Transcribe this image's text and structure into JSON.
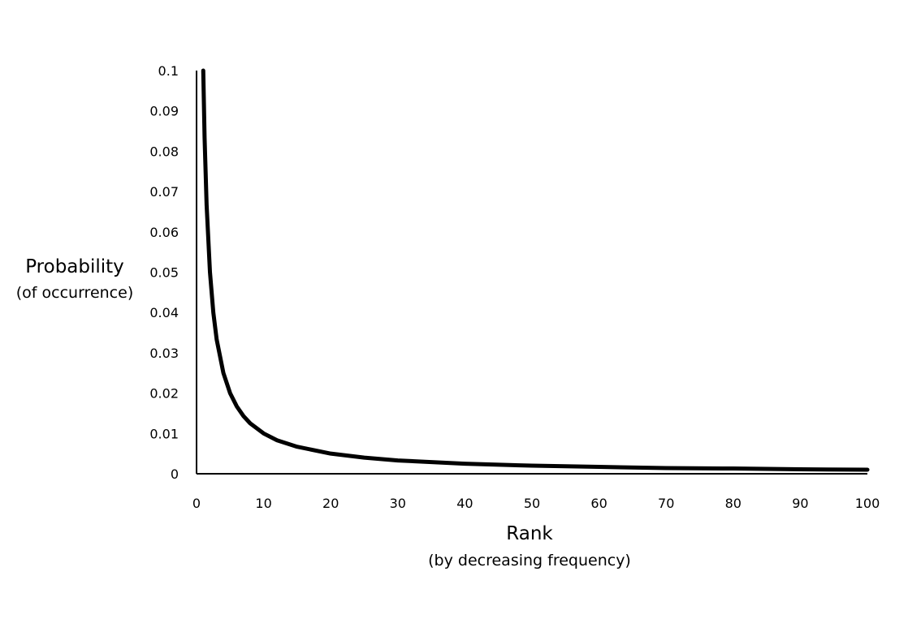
{
  "chart_data": {
    "type": "line",
    "title": "",
    "xlabel": "Rank",
    "xlabel_sub": "(by decreasing frequency)",
    "ylabel": "Probability",
    "ylabel_sub": "(of occurrence)",
    "xlim": [
      0,
      100
    ],
    "ylim": [
      0,
      0.1
    ],
    "x_ticks": [
      0,
      10,
      20,
      30,
      40,
      50,
      60,
      70,
      80,
      90,
      100
    ],
    "x_tick_labels": [
      "0",
      "10",
      "20",
      "30",
      "40",
      "50",
      "60",
      "70",
      "80",
      "90",
      "100"
    ],
    "y_ticks": [
      0,
      0.01,
      0.02,
      0.03,
      0.04,
      0.05,
      0.06,
      0.07,
      0.08,
      0.09,
      0.1
    ],
    "y_tick_labels": [
      "0",
      "0.01",
      "0.02",
      "0.03",
      "0.04",
      "0.05",
      "0.06",
      "0.07",
      "0.08",
      "0.09",
      "0.1"
    ],
    "grid": false,
    "legend": "none",
    "series": [
      {
        "color": "#000000",
        "x": [
          1,
          1.2,
          1.5,
          2,
          2.5,
          3,
          4,
          5,
          6,
          7,
          8,
          10,
          12,
          15,
          20,
          25,
          30,
          40,
          50,
          60,
          70,
          80,
          90,
          100
        ],
        "y": [
          0.1,
          0.0833,
          0.0667,
          0.05,
          0.04,
          0.0333,
          0.025,
          0.02,
          0.0167,
          0.0143,
          0.0125,
          0.01,
          0.0083,
          0.0067,
          0.005,
          0.004,
          0.0033,
          0.0025,
          0.002,
          0.0017,
          0.0014,
          0.0013,
          0.0011,
          0.001
        ]
      }
    ]
  }
}
